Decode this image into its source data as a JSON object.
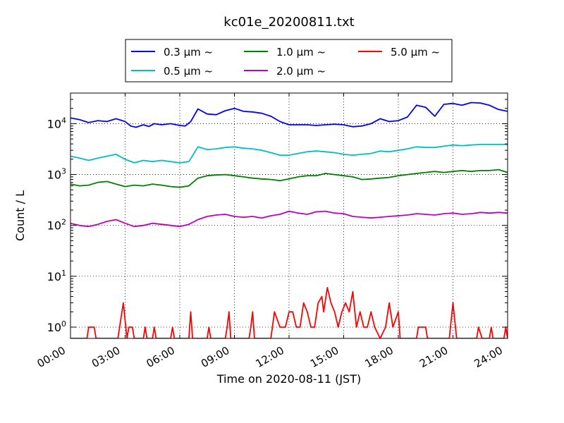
{
  "chart_data": {
    "type": "line",
    "title": "kc01e_20200811.txt",
    "xlabel": "Time on 2020-08-11 (JST)",
    "ylabel": "Count / L",
    "x_ticks": [
      "00:00",
      "03:00",
      "06:00",
      "09:00",
      "12:00",
      "15:00",
      "18:00",
      "21:00",
      "24:00"
    ],
    "x_tick_hours": [
      0,
      3,
      6,
      9,
      12,
      15,
      18,
      21,
      24
    ],
    "xlim_hours": [
      0,
      24
    ],
    "y_scale": "log",
    "ylim": [
      0.6,
      40000
    ],
    "y_ticks": [
      {
        "value": 1,
        "base": "10",
        "exp": "0"
      },
      {
        "value": 10,
        "base": "10",
        "exp": "1"
      },
      {
        "value": 100,
        "base": "10",
        "exp": "2"
      },
      {
        "value": 1000,
        "base": "10",
        "exp": "3"
      },
      {
        "value": 10000,
        "base": "10",
        "exp": "4"
      }
    ],
    "grid": true,
    "legend_position": "top-center",
    "series": [
      {
        "name": "0.3 μm ~",
        "color": "#0000ff",
        "points": [
          [
            0,
            13000
          ],
          [
            0.5,
            12000
          ],
          [
            1,
            10500
          ],
          [
            1.5,
            11500
          ],
          [
            2,
            11000
          ],
          [
            2.5,
            12500
          ],
          [
            3,
            11000
          ],
          [
            3.3,
            9000
          ],
          [
            3.6,
            8500
          ],
          [
            4,
            9500
          ],
          [
            4.3,
            8800
          ],
          [
            4.6,
            10000
          ],
          [
            5,
            9500
          ],
          [
            5.5,
            10000
          ],
          [
            6,
            9200
          ],
          [
            6.3,
            9000
          ],
          [
            6.6,
            11000
          ],
          [
            7,
            19500
          ],
          [
            7.5,
            15500
          ],
          [
            8,
            15000
          ],
          [
            8.5,
            18000
          ],
          [
            9,
            20000
          ],
          [
            9.5,
            17500
          ],
          [
            10,
            17000
          ],
          [
            10.5,
            16000
          ],
          [
            11,
            14000
          ],
          [
            11.5,
            11000
          ],
          [
            12,
            9500
          ],
          [
            12.5,
            9500
          ],
          [
            13,
            9500
          ],
          [
            13.5,
            9200
          ],
          [
            14,
            9500
          ],
          [
            14.5,
            9800
          ],
          [
            15,
            9500
          ],
          [
            15.5,
            8700
          ],
          [
            16,
            9000
          ],
          [
            16.5,
            10000
          ],
          [
            17,
            12500
          ],
          [
            17.5,
            11000
          ],
          [
            18,
            11500
          ],
          [
            18.5,
            13500
          ],
          [
            19,
            23000
          ],
          [
            19.5,
            21000
          ],
          [
            20,
            14000
          ],
          [
            20.5,
            24000
          ],
          [
            21,
            25000
          ],
          [
            21.5,
            23000
          ],
          [
            22,
            26000
          ],
          [
            22.5,
            25500
          ],
          [
            23,
            23000
          ],
          [
            23.5,
            19000
          ],
          [
            24,
            17500
          ]
        ]
      },
      {
        "name": "0.5 μm ~",
        "color": "#00bfbf",
        "points": [
          [
            0,
            2300
          ],
          [
            0.5,
            2100
          ],
          [
            1,
            1900
          ],
          [
            1.5,
            2100
          ],
          [
            2,
            2300
          ],
          [
            2.5,
            2500
          ],
          [
            3,
            2000
          ],
          [
            3.5,
            1700
          ],
          [
            4,
            1900
          ],
          [
            4.5,
            1800
          ],
          [
            5,
            1900
          ],
          [
            5.5,
            1800
          ],
          [
            6,
            1700
          ],
          [
            6.5,
            1800
          ],
          [
            7,
            3500
          ],
          [
            7.5,
            3100
          ],
          [
            8,
            3200
          ],
          [
            8.5,
            3400
          ],
          [
            9,
            3500
          ],
          [
            9.5,
            3300
          ],
          [
            10,
            3200
          ],
          [
            10.5,
            3000
          ],
          [
            11,
            2700
          ],
          [
            11.5,
            2400
          ],
          [
            12,
            2400
          ],
          [
            12.5,
            2600
          ],
          [
            13,
            2800
          ],
          [
            13.5,
            2900
          ],
          [
            14,
            2800
          ],
          [
            14.5,
            2700
          ],
          [
            15,
            2500
          ],
          [
            15.5,
            2400
          ],
          [
            16,
            2500
          ],
          [
            16.5,
            2600
          ],
          [
            17,
            2900
          ],
          [
            17.5,
            2800
          ],
          [
            18,
            3000
          ],
          [
            18.5,
            3200
          ],
          [
            19,
            3500
          ],
          [
            19.5,
            3400
          ],
          [
            20,
            3400
          ],
          [
            20.5,
            3600
          ],
          [
            21,
            3800
          ],
          [
            21.5,
            3700
          ],
          [
            22,
            3800
          ],
          [
            22.5,
            3900
          ],
          [
            23,
            3900
          ],
          [
            23.5,
            3900
          ],
          [
            24,
            3900
          ]
        ]
      },
      {
        "name": "1.0 μm ~",
        "color": "#008000",
        "points": [
          [
            0,
            650
          ],
          [
            0.5,
            600
          ],
          [
            1,
            620
          ],
          [
            1.5,
            700
          ],
          [
            2,
            730
          ],
          [
            2.5,
            650
          ],
          [
            3,
            580
          ],
          [
            3.5,
            620
          ],
          [
            4,
            600
          ],
          [
            4.5,
            650
          ],
          [
            5,
            620
          ],
          [
            5.5,
            580
          ],
          [
            6,
            560
          ],
          [
            6.5,
            600
          ],
          [
            7,
            850
          ],
          [
            7.5,
            950
          ],
          [
            8,
            980
          ],
          [
            8.5,
            1000
          ],
          [
            9,
            950
          ],
          [
            9.5,
            900
          ],
          [
            10,
            850
          ],
          [
            10.5,
            820
          ],
          [
            11,
            800
          ],
          [
            11.5,
            760
          ],
          [
            12,
            820
          ],
          [
            12.5,
            900
          ],
          [
            13,
            950
          ],
          [
            13.5,
            950
          ],
          [
            14,
            1050
          ],
          [
            14.5,
            1000
          ],
          [
            15,
            950
          ],
          [
            15.5,
            900
          ],
          [
            16,
            800
          ],
          [
            16.5,
            820
          ],
          [
            17,
            850
          ],
          [
            17.5,
            880
          ],
          [
            18,
            950
          ],
          [
            18.5,
            1000
          ],
          [
            19,
            1050
          ],
          [
            19.5,
            1100
          ],
          [
            20,
            1150
          ],
          [
            20.5,
            1100
          ],
          [
            21,
            1150
          ],
          [
            21.5,
            1200
          ],
          [
            22,
            1150
          ],
          [
            22.5,
            1200
          ],
          [
            23,
            1200
          ],
          [
            23.5,
            1250
          ],
          [
            24,
            1100
          ]
        ]
      },
      {
        "name": "2.0 μm ~",
        "color": "#bf00bf",
        "points": [
          [
            0,
            110
          ],
          [
            0.5,
            100
          ],
          [
            1,
            95
          ],
          [
            1.5,
            105
          ],
          [
            2,
            120
          ],
          [
            2.5,
            130
          ],
          [
            3,
            110
          ],
          [
            3.5,
            95
          ],
          [
            4,
            100
          ],
          [
            4.5,
            110
          ],
          [
            5,
            105
          ],
          [
            5.5,
            100
          ],
          [
            6,
            95
          ],
          [
            6.5,
            105
          ],
          [
            7,
            130
          ],
          [
            7.5,
            150
          ],
          [
            8,
            160
          ],
          [
            8.5,
            165
          ],
          [
            9,
            150
          ],
          [
            9.5,
            145
          ],
          [
            10,
            150
          ],
          [
            10.5,
            140
          ],
          [
            11,
            155
          ],
          [
            11.5,
            165
          ],
          [
            12,
            190
          ],
          [
            12.5,
            175
          ],
          [
            13,
            165
          ],
          [
            13.5,
            185
          ],
          [
            14,
            190
          ],
          [
            14.5,
            175
          ],
          [
            15,
            170
          ],
          [
            15.5,
            150
          ],
          [
            16,
            145
          ],
          [
            16.5,
            140
          ],
          [
            17,
            145
          ],
          [
            17.5,
            150
          ],
          [
            18,
            155
          ],
          [
            18.5,
            160
          ],
          [
            19,
            170
          ],
          [
            19.5,
            165
          ],
          [
            20,
            160
          ],
          [
            20.5,
            170
          ],
          [
            21,
            175
          ],
          [
            21.5,
            165
          ],
          [
            22,
            170
          ],
          [
            22.5,
            180
          ],
          [
            23,
            175
          ],
          [
            23.5,
            180
          ],
          [
            24,
            175
          ]
        ]
      },
      {
        "name": "5.0 μm ~",
        "color": "#ff0000",
        "points": [
          [
            0,
            0.6
          ],
          [
            0.9,
            0.6
          ],
          [
            1,
            1
          ],
          [
            1.3,
            1
          ],
          [
            1.4,
            0.6
          ],
          [
            2.6,
            0.6
          ],
          [
            2.9,
            3
          ],
          [
            3.1,
            0.6
          ],
          [
            3.2,
            1
          ],
          [
            3.4,
            1
          ],
          [
            3.5,
            0.6
          ],
          [
            4,
            0.6
          ],
          [
            4.1,
            1
          ],
          [
            4.2,
            0.6
          ],
          [
            4.5,
            0.6
          ],
          [
            4.6,
            1
          ],
          [
            4.7,
            0.6
          ],
          [
            5.5,
            0.6
          ],
          [
            5.6,
            1
          ],
          [
            5.7,
            0.6
          ],
          [
            6.5,
            0.6
          ],
          [
            6.6,
            2
          ],
          [
            6.7,
            0.6
          ],
          [
            7.5,
            0.6
          ],
          [
            7.6,
            1
          ],
          [
            7.7,
            0.6
          ],
          [
            8.5,
            0.6
          ],
          [
            8.6,
            1
          ],
          [
            8.7,
            2
          ],
          [
            8.8,
            0.6
          ],
          [
            9.8,
            0.6
          ],
          [
            9.9,
            1
          ],
          [
            10,
            2
          ],
          [
            10.1,
            0.6
          ],
          [
            11,
            0.6
          ],
          [
            11.2,
            2
          ],
          [
            11.5,
            1
          ],
          [
            11.8,
            1
          ],
          [
            12,
            2
          ],
          [
            12.2,
            2
          ],
          [
            12.4,
            1
          ],
          [
            12.6,
            1
          ],
          [
            12.8,
            3
          ],
          [
            13,
            2
          ],
          [
            13.2,
            1
          ],
          [
            13.4,
            1
          ],
          [
            13.6,
            3
          ],
          [
            13.8,
            4
          ],
          [
            13.9,
            2
          ],
          [
            14.1,
            6
          ],
          [
            14.3,
            3
          ],
          [
            14.5,
            2
          ],
          [
            14.7,
            1
          ],
          [
            14.9,
            2
          ],
          [
            15.1,
            3
          ],
          [
            15.3,
            2
          ],
          [
            15.5,
            5
          ],
          [
            15.7,
            1
          ],
          [
            15.9,
            2
          ],
          [
            16.1,
            1
          ],
          [
            16.3,
            1
          ],
          [
            16.5,
            2
          ],
          [
            16.7,
            1
          ],
          [
            17,
            0.6
          ],
          [
            17.3,
            1
          ],
          [
            17.5,
            3
          ],
          [
            17.7,
            1
          ],
          [
            18,
            2
          ],
          [
            18.1,
            0.6
          ],
          [
            19,
            0.6
          ],
          [
            19.1,
            1
          ],
          [
            19.5,
            1
          ],
          [
            19.6,
            0.6
          ],
          [
            20.8,
            0.6
          ],
          [
            21,
            3
          ],
          [
            21.2,
            0.6
          ],
          [
            22.3,
            0.6
          ],
          [
            22.4,
            1
          ],
          [
            22.6,
            0.6
          ],
          [
            23,
            0.6
          ],
          [
            23.1,
            1
          ],
          [
            23.2,
            0.6
          ],
          [
            23.8,
            0.6
          ],
          [
            23.9,
            1
          ],
          [
            24,
            0.6
          ]
        ]
      }
    ]
  }
}
